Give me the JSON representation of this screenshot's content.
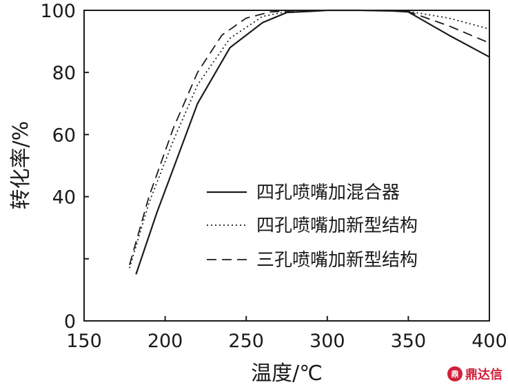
{
  "chart_data": {
    "type": "line",
    "xlabel": "温度/℃",
    "ylabel": "转化率/%",
    "xlim": [
      150,
      400
    ],
    "ylim": [
      0,
      100
    ],
    "xticks": [
      150,
      200,
      250,
      300,
      350,
      400
    ],
    "yticks": [
      0,
      20,
      40,
      60,
      80,
      100
    ],
    "ytick_labels": [
      "0",
      "",
      "40",
      "60",
      "80",
      "100"
    ],
    "grid": false,
    "legend_position": "center-right",
    "series": [
      {
        "name": "四孔喷嘴加混合器",
        "style": "solid",
        "x": [
          182,
          195,
          205,
          220,
          240,
          260,
          275,
          290,
          300,
          320,
          340,
          350,
          375,
          400
        ],
        "y": [
          15,
          35,
          49,
          70,
          88,
          96,
          99.3,
          99.7,
          100,
          100,
          99.8,
          99.5,
          92,
          85
        ]
      },
      {
        "name": "四孔喷嘴加新型结构",
        "style": "dotted",
        "x": [
          178,
          190,
          205,
          220,
          240,
          260,
          275,
          290,
          300,
          320,
          340,
          350,
          375,
          400
        ],
        "y": [
          17,
          38,
          58,
          76,
          91,
          98,
          99.6,
          99.9,
          100,
          100,
          99.9,
          99.7,
          97.5,
          94
        ]
      },
      {
        "name": "三孔喷嘴加新型结构",
        "style": "dashed",
        "x": [
          178,
          190,
          205,
          220,
          235,
          250,
          265,
          280,
          300,
          320,
          340,
          350,
          375,
          400
        ],
        "y": [
          18,
          40,
          62,
          80,
          92,
          97.5,
          99.5,
          99.9,
          100,
          100,
          99.9,
          99.6,
          95,
          89.5
        ]
      }
    ]
  },
  "watermark": {
    "text": "鼎达信",
    "logo_color": "#d0213a"
  }
}
